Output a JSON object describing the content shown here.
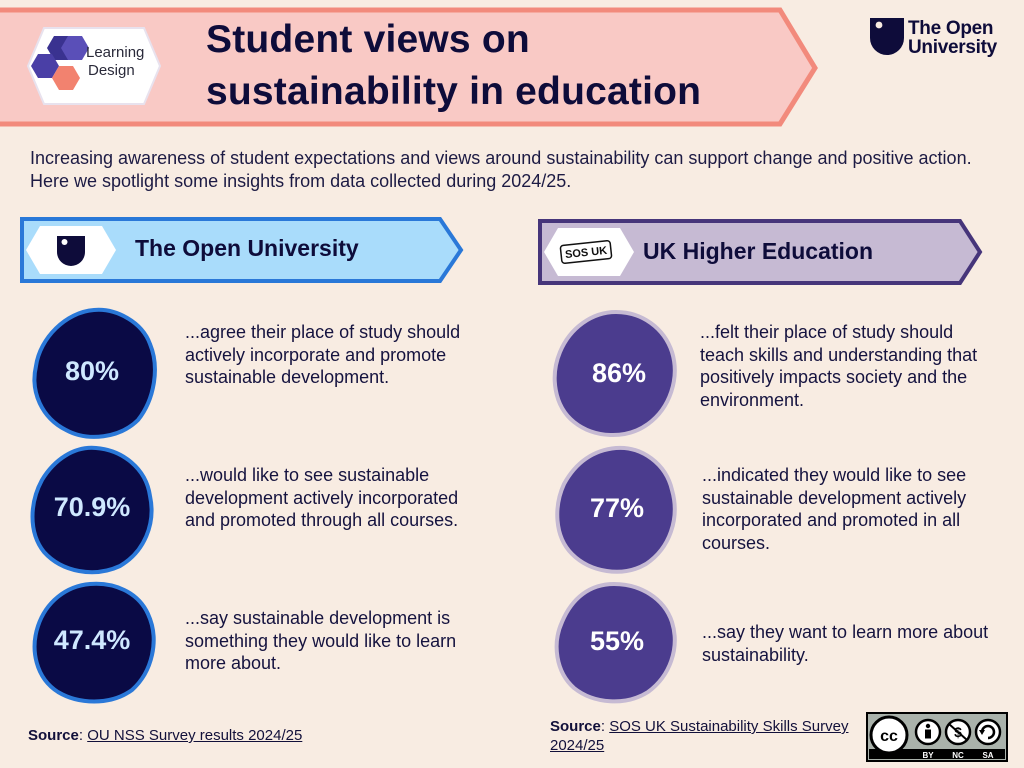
{
  "header": {
    "badge_line1": "Learning",
    "badge_line2": "Design",
    "title_line1": "Student views on",
    "title_line2": "sustainability in education",
    "logo_line1": "The Open",
    "logo_line2": "University"
  },
  "intro": "Increasing awareness of student expectations and views around sustainability can support change and positive action. Here we spotlight some insights from data collected during 2024/25.",
  "ou": {
    "title": "The Open University",
    "stats": [
      {
        "value": "80%",
        "text": "...agree their place of study should actively incorporate and promote sustainable development."
      },
      {
        "value": "70.9%",
        "text": "...would like to see sustainable development actively incorporated and promoted through all courses."
      },
      {
        "value": "47.4%",
        "text": "...say sustainable development is something they would like to learn more about."
      }
    ],
    "source_label": "Source",
    "source_link": "OU NSS Survey results 2024/25"
  },
  "uk": {
    "title": "UK Higher Education",
    "badge_text": "SOS UK",
    "stats": [
      {
        "value": "86%",
        "text": "...felt their place of study should teach skills and understanding that positively impacts society and the environment."
      },
      {
        "value": "77%",
        "text": "...indicated they would like to see sustainable development actively incorporated and promoted in all courses."
      },
      {
        "value": "55%",
        "text": "...say they want to learn more about sustainability."
      }
    ],
    "source_label": "Source",
    "source_link": "SOS UK Sustainability Skills Survey 2024/25"
  },
  "license": {
    "cc": "cc",
    "by": "BY",
    "nc": "NC",
    "sa": "SA"
  },
  "colors": {
    "banner_fill": "#f9c9c5",
    "banner_stroke": "#f28a7c",
    "ou_header_fill": "#a9dcfb",
    "ou_header_stroke": "#2a78d8",
    "uk_header_fill": "#c6bad3",
    "uk_header_stroke": "#46357a",
    "ou_blob": "#0a0a45",
    "uk_blob": "#4b3c8e"
  }
}
